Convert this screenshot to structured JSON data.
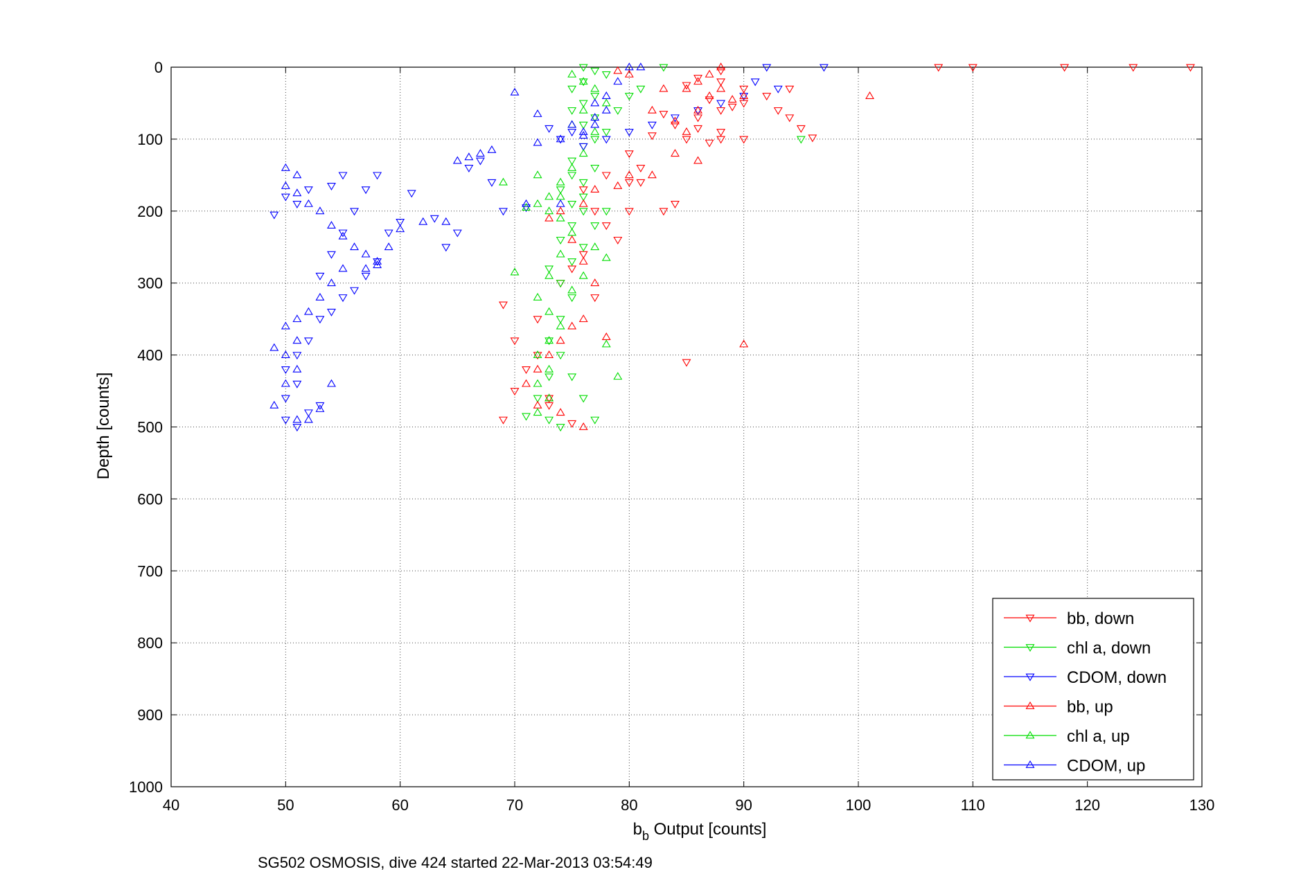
{
  "chart_data": {
    "type": "scatter",
    "xlabel_main": "b",
    "xlabel_sub": "b",
    "xlabel_rest": " Output [counts]",
    "ylabel": "Depth [counts]",
    "caption": "SG502 OSMOSIS, dive 424 started 22-Mar-2013 03:54:49",
    "xlim": [
      40,
      130
    ],
    "ylim": [
      0,
      1000
    ],
    "y_reversed": true,
    "grid": true,
    "x_ticks": [
      "40",
      "50",
      "60",
      "70",
      "80",
      "90",
      "100",
      "110",
      "120",
      "130"
    ],
    "y_ticks": [
      "0",
      "100",
      "200",
      "300",
      "400",
      "500",
      "600",
      "700",
      "800",
      "900",
      "1000"
    ],
    "legend_position": "bottom-right",
    "series": [
      {
        "name": "bb, down",
        "color": "#ff0000",
        "marker": "triangle-down",
        "points": [
          [
            107,
            0
          ],
          [
            110,
            0
          ],
          [
            118,
            0
          ],
          [
            124,
            0
          ],
          [
            129,
            0
          ],
          [
            88,
            5
          ],
          [
            86,
            15
          ],
          [
            85,
            25
          ],
          [
            88,
            20
          ],
          [
            90,
            30
          ],
          [
            94,
            30
          ],
          [
            92,
            40
          ],
          [
            90,
            50
          ],
          [
            88,
            60
          ],
          [
            86,
            70
          ],
          [
            84,
            80
          ],
          [
            86,
            85
          ],
          [
            88,
            90
          ],
          [
            85,
            100
          ],
          [
            87,
            105
          ],
          [
            90,
            100
          ],
          [
            96,
            98
          ],
          [
            95,
            85
          ],
          [
            94,
            70
          ],
          [
            93,
            60
          ],
          [
            89,
            55
          ],
          [
            87,
            45
          ],
          [
            83,
            65
          ],
          [
            82,
            95
          ],
          [
            80,
            120
          ],
          [
            81,
            160
          ],
          [
            83,
            200
          ],
          [
            84,
            190
          ],
          [
            80,
            200
          ],
          [
            78,
            220
          ],
          [
            79,
            240
          ],
          [
            80,
            160
          ],
          [
            81,
            140
          ],
          [
            78,
            150
          ],
          [
            76,
            170
          ],
          [
            77,
            200
          ],
          [
            76,
            260
          ],
          [
            75,
            280
          ],
          [
            74,
            300
          ],
          [
            77,
            320
          ],
          [
            72,
            350
          ],
          [
            70,
            380
          ],
          [
            71,
            420
          ],
          [
            73,
            460
          ],
          [
            70,
            450
          ],
          [
            69,
            490
          ],
          [
            75,
            495
          ],
          [
            73,
            470
          ],
          [
            72,
            400
          ],
          [
            69,
            330
          ],
          [
            85,
            410
          ],
          [
            88,
            100
          ],
          [
            86,
            60
          ]
        ]
      },
      {
        "name": "chl a, down",
        "color": "#00dd00",
        "marker": "triangle-down",
        "points": [
          [
            76,
            0
          ],
          [
            77,
            5
          ],
          [
            78,
            10
          ],
          [
            76,
            20
          ],
          [
            75,
            30
          ],
          [
            77,
            40
          ],
          [
            76,
            50
          ],
          [
            75,
            60
          ],
          [
            77,
            70
          ],
          [
            76,
            80
          ],
          [
            78,
            90
          ],
          [
            77,
            100
          ],
          [
            95,
            100
          ],
          [
            76,
            110
          ],
          [
            75,
            130
          ],
          [
            77,
            140
          ],
          [
            76,
            160
          ],
          [
            74,
            170
          ],
          [
            75,
            190
          ],
          [
            76,
            200
          ],
          [
            75,
            220
          ],
          [
            74,
            240
          ],
          [
            76,
            250
          ],
          [
            75,
            270
          ],
          [
            73,
            280
          ],
          [
            74,
            300
          ],
          [
            75,
            320
          ],
          [
            74,
            350
          ],
          [
            73,
            380
          ],
          [
            74,
            400
          ],
          [
            73,
            430
          ],
          [
            72,
            460
          ],
          [
            73,
            490
          ],
          [
            74,
            500
          ],
          [
            77,
            490
          ],
          [
            71,
            485
          ],
          [
            76,
            460
          ],
          [
            75,
            430
          ],
          [
            77,
            220
          ],
          [
            78,
            200
          ],
          [
            76,
            180
          ],
          [
            75,
            150
          ],
          [
            79,
            60
          ],
          [
            80,
            40
          ],
          [
            81,
            30
          ],
          [
            83,
            0
          ]
        ]
      },
      {
        "name": "CDOM, down",
        "color": "#0000ff",
        "marker": "triangle-down",
        "points": [
          [
            97,
            0
          ],
          [
            92,
            0
          ],
          [
            91,
            20
          ],
          [
            93,
            30
          ],
          [
            90,
            40
          ],
          [
            88,
            50
          ],
          [
            86,
            60
          ],
          [
            84,
            70
          ],
          [
            82,
            80
          ],
          [
            80,
            90
          ],
          [
            78,
            100
          ],
          [
            76,
            110
          ],
          [
            75,
            90
          ],
          [
            73,
            85
          ],
          [
            74,
            100
          ],
          [
            71,
            195
          ],
          [
            69,
            200
          ],
          [
            67,
            130
          ],
          [
            66,
            140
          ],
          [
            68,
            160
          ],
          [
            65,
            230
          ],
          [
            64,
            250
          ],
          [
            63,
            210
          ],
          [
            61,
            175
          ],
          [
            60,
            215
          ],
          [
            59,
            230
          ],
          [
            58,
            270
          ],
          [
            57,
            290
          ],
          [
            56,
            310
          ],
          [
            55,
            320
          ],
          [
            54,
            340
          ],
          [
            53,
            350
          ],
          [
            52,
            380
          ],
          [
            51,
            400
          ],
          [
            50,
            420
          ],
          [
            51,
            440
          ],
          [
            50,
            460
          ],
          [
            50,
            490
          ],
          [
            51,
            500
          ],
          [
            52,
            480
          ],
          [
            53,
            470
          ],
          [
            49,
            205
          ],
          [
            50,
            180
          ],
          [
            51,
            190
          ],
          [
            52,
            170
          ],
          [
            54,
            165
          ],
          [
            55,
            150
          ],
          [
            57,
            170
          ],
          [
            58,
            150
          ],
          [
            56,
            200
          ],
          [
            55,
            230
          ],
          [
            54,
            260
          ],
          [
            53,
            290
          ]
        ]
      },
      {
        "name": "bb, up",
        "color": "#ff0000",
        "marker": "triangle-up",
        "points": [
          [
            88,
            0
          ],
          [
            87,
            10
          ],
          [
            86,
            20
          ],
          [
            85,
            30
          ],
          [
            88,
            30
          ],
          [
            87,
            40
          ],
          [
            89,
            45
          ],
          [
            90,
            40
          ],
          [
            86,
            60
          ],
          [
            84,
            75
          ],
          [
            85,
            90
          ],
          [
            86,
            130
          ],
          [
            84,
            120
          ],
          [
            82,
            150
          ],
          [
            80,
            150
          ],
          [
            79,
            165
          ],
          [
            77,
            170
          ],
          [
            76,
            190
          ],
          [
            74,
            200
          ],
          [
            73,
            210
          ],
          [
            75,
            240
          ],
          [
            76,
            270
          ],
          [
            77,
            300
          ],
          [
            76,
            350
          ],
          [
            75,
            360
          ],
          [
            74,
            380
          ],
          [
            73,
            400
          ],
          [
            72,
            420
          ],
          [
            71,
            440
          ],
          [
            72,
            470
          ],
          [
            73,
            460
          ],
          [
            74,
            480
          ],
          [
            76,
            500
          ],
          [
            78,
            375
          ],
          [
            90,
            385
          ],
          [
            101,
            40
          ],
          [
            82,
            60
          ],
          [
            83,
            30
          ],
          [
            80,
            10
          ],
          [
            79,
            5
          ]
        ]
      },
      {
        "name": "chl a, up",
        "color": "#00dd00",
        "marker": "triangle-up",
        "points": [
          [
            75,
            10
          ],
          [
            76,
            20
          ],
          [
            77,
            30
          ],
          [
            78,
            50
          ],
          [
            76,
            60
          ],
          [
            75,
            80
          ],
          [
            77,
            90
          ],
          [
            76,
            120
          ],
          [
            75,
            140
          ],
          [
            74,
            160
          ],
          [
            73,
            180
          ],
          [
            72,
            190
          ],
          [
            73,
            200
          ],
          [
            74,
            210
          ],
          [
            75,
            230
          ],
          [
            74,
            260
          ],
          [
            73,
            290
          ],
          [
            72,
            320
          ],
          [
            73,
            340
          ],
          [
            74,
            360
          ],
          [
            73,
            380
          ],
          [
            72,
            400
          ],
          [
            73,
            420
          ],
          [
            72,
            440
          ],
          [
            73,
            460
          ],
          [
            72,
            480
          ],
          [
            78,
            385
          ],
          [
            79,
            430
          ],
          [
            69,
            160
          ],
          [
            70,
            285
          ],
          [
            72,
            150
          ],
          [
            71,
            195
          ],
          [
            74,
            180
          ],
          [
            77,
            250
          ],
          [
            78,
            265
          ],
          [
            76,
            290
          ],
          [
            75,
            310
          ]
        ]
      },
      {
        "name": "CDOM, up",
        "color": "#0000ff",
        "marker": "triangle-up",
        "points": [
          [
            80,
            0
          ],
          [
            81,
            0
          ],
          [
            79,
            20
          ],
          [
            78,
            40
          ],
          [
            77,
            50
          ],
          [
            78,
            60
          ],
          [
            77,
            70
          ],
          [
            75,
            80
          ],
          [
            76,
            95
          ],
          [
            74,
            100
          ],
          [
            72,
            105
          ],
          [
            70,
            35
          ],
          [
            72,
            65
          ],
          [
            71,
            190
          ],
          [
            68,
            115
          ],
          [
            67,
            120
          ],
          [
            66,
            125
          ],
          [
            65,
            130
          ],
          [
            64,
            215
          ],
          [
            62,
            215
          ],
          [
            60,
            225
          ],
          [
            59,
            250
          ],
          [
            58,
            270
          ],
          [
            57,
            280
          ],
          [
            55,
            280
          ],
          [
            54,
            300
          ],
          [
            53,
            320
          ],
          [
            52,
            340
          ],
          [
            51,
            350
          ],
          [
            50,
            360
          ],
          [
            49,
            390
          ],
          [
            51,
            380
          ],
          [
            50,
            400
          ],
          [
            51,
            420
          ],
          [
            50,
            440
          ],
          [
            49,
            470
          ],
          [
            51,
            490
          ],
          [
            52,
            490
          ],
          [
            53,
            475
          ],
          [
            54,
            440
          ],
          [
            50,
            140
          ],
          [
            51,
            150
          ],
          [
            50,
            165
          ],
          [
            51,
            175
          ],
          [
            52,
            190
          ],
          [
            53,
            200
          ],
          [
            54,
            220
          ],
          [
            55,
            235
          ],
          [
            56,
            250
          ],
          [
            57,
            260
          ],
          [
            58,
            275
          ],
          [
            74,
            190
          ],
          [
            76,
            90
          ],
          [
            77,
            80
          ]
        ]
      }
    ]
  }
}
